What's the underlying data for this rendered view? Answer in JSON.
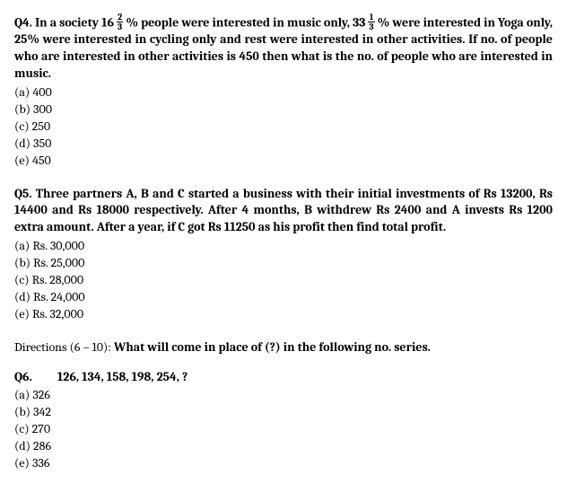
{
  "q4": {
    "label": "Q4.",
    "text_part1": "In a society 16",
    "frac1_num": "2",
    "frac1_den": "3",
    "text_part2": "% people were interested in music only, 33",
    "frac2_num": "1",
    "frac2_den": "3",
    "text_part3": "% were interested in Yoga only, 25% were interested in cycling only and rest were interested in other activities. If no. of people who are interested in other activities is 450 then what is the no. of people who are interested in music.",
    "options": {
      "a": "(a) 400",
      "b": "(b) 300",
      "c": "(c) 250",
      "d": "(d) 350",
      "e": "(e) 450"
    }
  },
  "q5": {
    "label": "Q5.",
    "text": "Three partners A, B and C started a business with their initial investments of Rs 13200, Rs 14400 and Rs 18000 respectively. After 4 months, B withdrew Rs 2400 and A invests Rs 1200 extra amount. After a year, if C got Rs 11250 as his profit then find total profit.",
    "options": {
      "a": "(a) Rs. 30,000",
      "b": "(b) Rs. 25,000",
      "c": "(c) Rs. 28,000",
      "d": "(d) Rs. 24,000",
      "e": "(e) Rs. 32,000"
    }
  },
  "directions": {
    "prefix": "Directions (6 – 10): ",
    "bold": "What will come in place of (?) in the following no. series."
  },
  "q6": {
    "label": "Q6.",
    "series": "126, 134, 158, 198, 254, ?",
    "options": {
      "a": "(a) 326",
      "b": "(b) 342",
      "c": "(c) 270",
      "d": "(d) 286",
      "e": "(e) 336"
    }
  }
}
